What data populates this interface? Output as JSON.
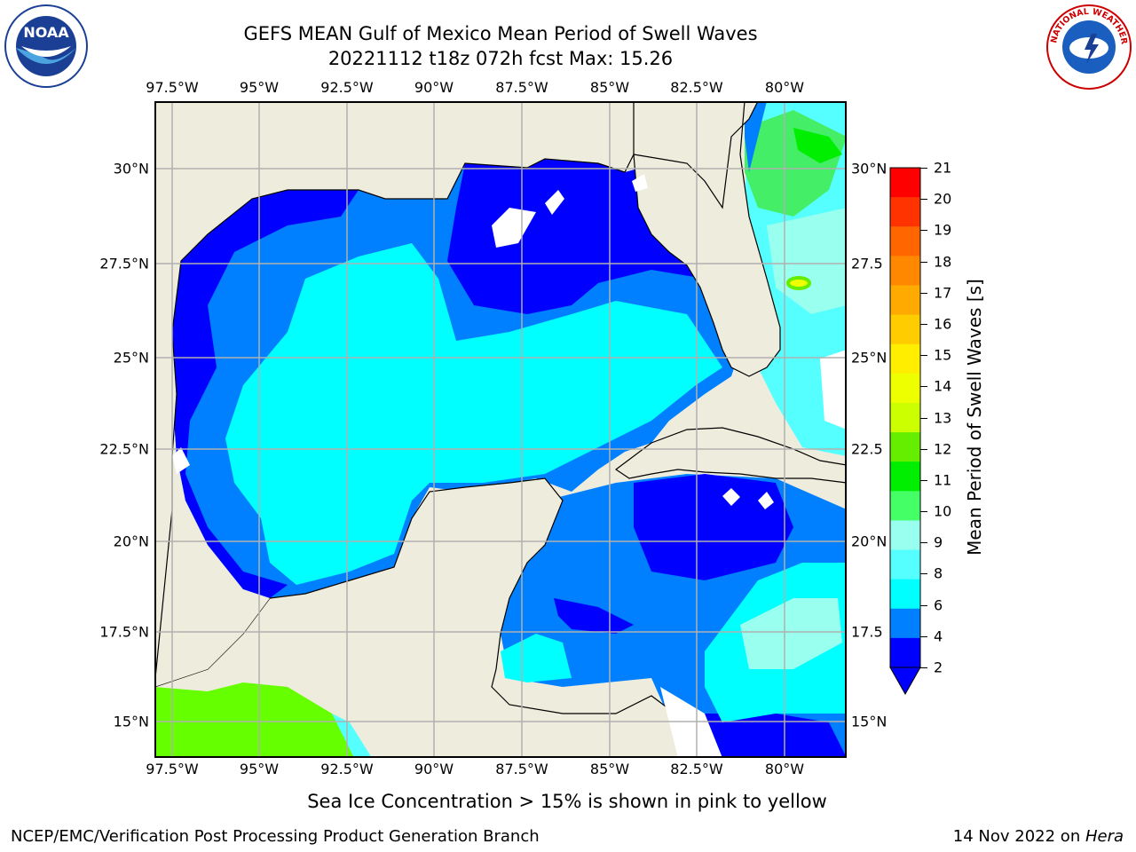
{
  "title": {
    "line1": "GEFS MEAN Gulf of Mexico Mean Period of Swell Waves",
    "line2": "20221112 t18z 072h fcst   Max: 15.26"
  },
  "axes": {
    "lon_labels": [
      "97.5°W",
      "95°W",
      "92.5°W",
      "90°W",
      "87.5°W",
      "85°W",
      "82.5°W",
      "80°W"
    ],
    "lat_labels": [
      "30°N",
      "27.5°N",
      "25°N",
      "22.5°N",
      "20°N",
      "17.5°N",
      "15°N"
    ],
    "right_lat_labels": [
      "30°N",
      "27.5",
      "25°N",
      "22.5",
      "20°N",
      "17.5",
      "15°N"
    ]
  },
  "colorbar": {
    "label": "Mean Period of Swell Waves [s]",
    "ticks": [
      "21",
      "20",
      "19",
      "18",
      "17",
      "16",
      "15",
      "14",
      "13",
      "12",
      "11",
      "10",
      "9",
      "8",
      "6",
      "4",
      "2"
    ],
    "colors": [
      "#ff0000",
      "#ff3300",
      "#ff6600",
      "#ff8800",
      "#ffaa00",
      "#ffcc00",
      "#ffee00",
      "#eeff00",
      "#ccff00",
      "#66ee00",
      "#00ee00",
      "#44ff66",
      "#99ffee",
      "#55ffff",
      "#00ffff",
      "#0080ff",
      "#0000ff"
    ]
  },
  "note": "Sea Ice Concentration > 15% is shown in pink to yellow",
  "footer": {
    "left": "NCEP/EMC/Verification Post Processing Product Generation Branch",
    "date": "14 Nov 2022 on ",
    "machine": "Hera"
  },
  "logos": {
    "left": "NOAA",
    "right": "NATIONAL WEATHER SERVICE"
  },
  "colors": {
    "land": "#eeecdc",
    "deep_blue": "#0000ff",
    "mid_blue": "#0080ff",
    "cyan": "#00ffff",
    "light_cyan": "#55ffff",
    "pale_cyan": "#99ffee",
    "green": "#44ee66",
    "lime": "#66ff00"
  }
}
